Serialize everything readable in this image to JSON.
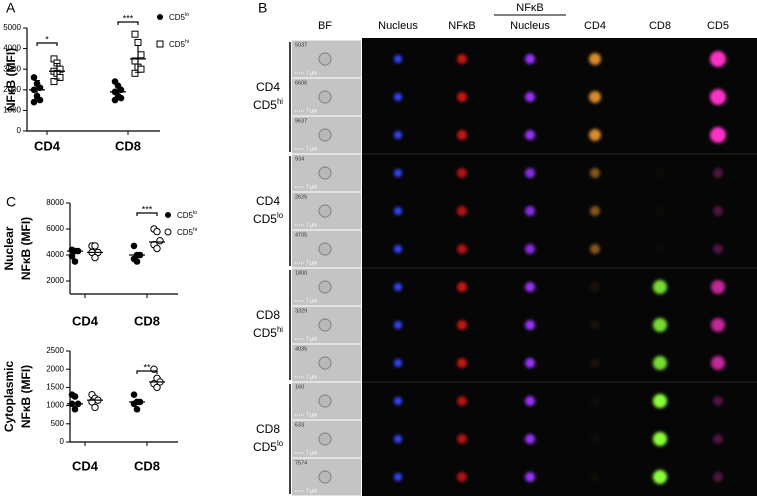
{
  "panels": {
    "a": "A",
    "b": "B",
    "c": "C"
  },
  "chart_data": [
    {
      "type": "scatter",
      "y_label": [
        "NFκB (MFI)"
      ],
      "categories": [
        "CD4",
        "CD8"
      ],
      "ylim": [
        0,
        5000
      ],
      "yticks": [
        0,
        1000,
        2000,
        3000,
        4000,
        5000
      ],
      "series": [
        {
          "name": "CD5",
          "name_sup": "lo",
          "marker": "circle-filled",
          "color": "#000000",
          "values": [
            [
              2600,
              2300,
              2100,
              2000,
              1700,
              1500,
              1400
            ],
            [
              2400,
              2200,
              2000,
              1900,
              1700,
              1600,
              1500
            ]
          ],
          "mean": [
            2000,
            1900
          ],
          "sd": [
            450,
            320
          ]
        },
        {
          "name": "CD5",
          "name_sup": "hi",
          "marker": "square-open",
          "color": "#000000",
          "values": [
            [
              3500,
              3300,
              3000,
              2900,
              2800,
              2600,
              2400
            ],
            [
              4700,
              4300,
              3700,
              3400,
              3100,
              3000,
              2800
            ]
          ],
          "mean": [
            2900,
            3500
          ],
          "sd": [
            380,
            650
          ]
        }
      ],
      "annotations": [
        {
          "text": "*",
          "category": 0
        },
        {
          "text": "***",
          "category": 1
        }
      ]
    },
    {
      "type": "scatter",
      "y_label": [
        "Nuclear",
        "NFκB (MFI)"
      ],
      "categories": [
        "CD4",
        "CD8"
      ],
      "ylim": [
        1000,
        8000
      ],
      "yticks": [
        2000,
        4000,
        6000,
        8000
      ],
      "series": [
        {
          "name": "CD5",
          "name_sup": "lo",
          "marker": "circle-filled",
          "color": "#000000",
          "values": [
            [
              4400,
              4300,
              4300,
              3900,
              3500
            ],
            [
              4700,
              4000,
              4000,
              3700,
              3500
            ]
          ],
          "median": [
            4300,
            4000
          ]
        },
        {
          "name": "CD5",
          "name_sup": "hi",
          "marker": "circle-open",
          "color": "#000000",
          "values": [
            [
              4700,
              4700,
              4200,
              4200,
              3800
            ],
            [
              6000,
              5800,
              5100,
              4800,
              4500
            ]
          ],
          "median": [
            4200,
            5000
          ]
        }
      ],
      "annotations": [
        {
          "text": "***",
          "category": 1
        }
      ]
    },
    {
      "type": "scatter",
      "y_label": [
        "Cytoplasmic",
        "NFκB (MFI)"
      ],
      "categories": [
        "CD4",
        "CD8"
      ],
      "ylim": [
        0,
        2500
      ],
      "yticks": [
        0,
        500,
        1000,
        1500,
        2000,
        2500
      ],
      "series": [
        {
          "marker": "circle-filled",
          "color": "#000000",
          "values": [
            [
              1300,
              1250,
              1050,
              1050,
              900
            ],
            [
              1300,
              1100,
              1100,
              1050,
              900
            ]
          ],
          "median": [
            1050,
            1100
          ]
        },
        {
          "marker": "circle-open",
          "color": "#000000",
          "values": [
            [
              1300,
              1200,
              1150,
              1100,
              950
            ],
            [
              2000,
              1750,
              1650,
              1600,
              1500
            ]
          ],
          "median": [
            1150,
            1650
          ]
        }
      ],
      "annotations": [
        {
          "text": "**",
          "category": 1
        }
      ]
    }
  ],
  "imaging": {
    "columns": [
      {
        "label": "BF"
      },
      {
        "label": "Nucleus"
      },
      {
        "label": "NFκB"
      },
      {
        "label": "NFκB",
        "sub": "Nucleus"
      },
      {
        "label": "CD4"
      },
      {
        "label": "CD8"
      },
      {
        "label": "CD5"
      }
    ],
    "scale_label": "7 µm",
    "groups": [
      {
        "line1": "CD4",
        "line2": "CD5",
        "line2_sup": "hi",
        "cells": [
          5037,
          6606,
          9637
        ]
      },
      {
        "line1": "CD4",
        "line2": "CD5",
        "line2_sup": "lo",
        "cells": [
          934,
          2625,
          4705
        ]
      },
      {
        "line1": "CD8",
        "line2": "CD5",
        "line2_sup": "hi",
        "cells": [
          1800,
          3329,
          4035
        ]
      },
      {
        "line1": "CD8",
        "line2": "CD5",
        "line2_sup": "lo",
        "cells": [
          160,
          633,
          7574
        ]
      }
    ]
  }
}
